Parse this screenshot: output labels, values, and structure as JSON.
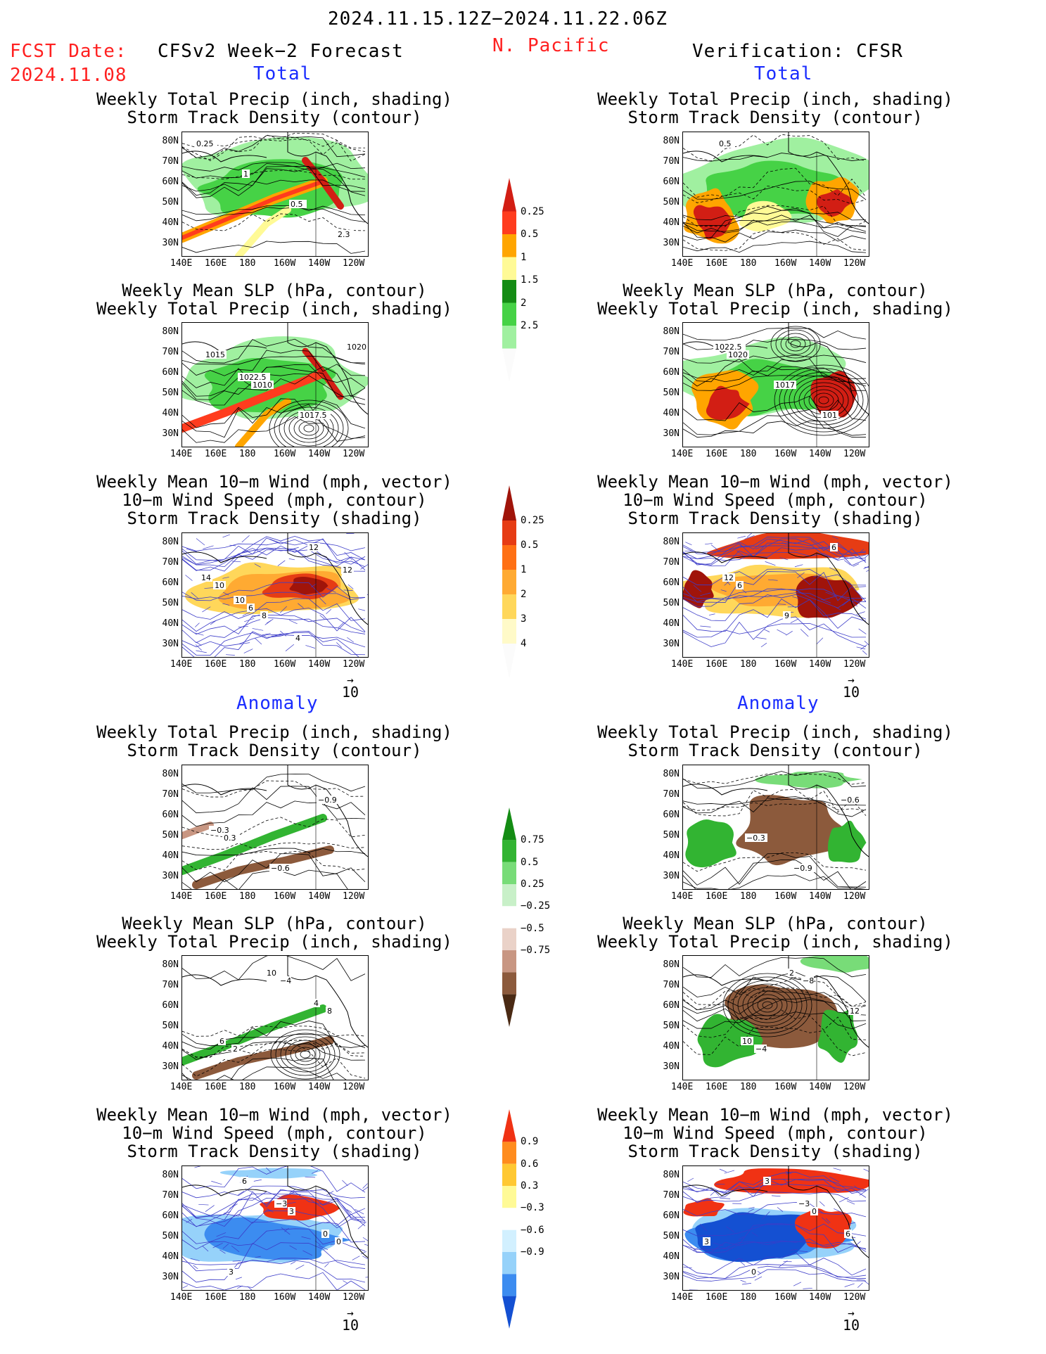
{
  "header": {
    "date_range": "2024.11.15.12Z−2024.11.22.06Z",
    "region": "N. Pacific",
    "fcst_label": "FCST Date:",
    "fcst_date": "2024.11.08",
    "left_title": "CFSv2 Week−2 Forecast",
    "right_title": "Verification: CFSR",
    "total_label": "Total",
    "anomaly_label": "Anomaly"
  },
  "panel_titles": {
    "precip_track": "Weekly Total Precip (inch, shading)\nStorm Track Density (contour)",
    "slp_precip": "Weekly Mean SLP (hPa, contour)\nWeekly Total Precip (inch, shading)",
    "wind_track": "Weekly Mean 10−m Wind (mph, vector)\n10−m Wind Speed (mph, contour)\nStorm Track Density (shading)"
  },
  "axes": {
    "lat_ticks": [
      "80N",
      "70N",
      "60N",
      "50N",
      "40N",
      "30N"
    ],
    "lon_ticks": [
      "140E",
      "160E",
      "180",
      "160W",
      "140W",
      "120W"
    ]
  },
  "vector_ref": "10",
  "colorbars": [
    {
      "name": "precip-total",
      "colors": [
        "#fbfbfb",
        "#a0f0a0",
        "#46d246",
        "#148c14",
        "#fffa96",
        "#ffa500",
        "#ff3c1e",
        "#d21e14"
      ],
      "labels": [
        "0.25",
        "0.5",
        "1",
        "1.5",
        "2",
        "2.5"
      ]
    },
    {
      "name": "track-total",
      "colors": [
        "#fbfbfb",
        "#fffac8",
        "#ffd75a",
        "#ffaa32",
        "#ff7014",
        "#e63c14",
        "#a0140a"
      ],
      "labels": [
        "0.25",
        "0.5",
        "1",
        "2",
        "3",
        "4"
      ]
    },
    {
      "name": "precip-anom",
      "colors": [
        "#4a2a14",
        "#8c5a3c",
        "#c89682",
        "#ead2c8",
        "#ffffff",
        "#c8f0c8",
        "#78dc78",
        "#32b432",
        "#148c14"
      ],
      "labels": [
        "0.75",
        "0.5",
        "0.25",
        "−0.25",
        "−0.5",
        "−0.75"
      ]
    },
    {
      "name": "track-anom",
      "colors": [
        "#1450d2",
        "#3c8cf0",
        "#96d2fa",
        "#d2f0ff",
        "#ffffff",
        "#fffa96",
        "#ffc832",
        "#ff8c1e",
        "#f03214"
      ],
      "labels": [
        "0.9",
        "0.6",
        "0.3",
        "−0.3",
        "−0.6",
        "−0.9"
      ]
    }
  ],
  "panels": [
    {
      "id": "fc-total-precip",
      "labels": [
        "0.25",
        "1",
        "0.5",
        "2.3"
      ]
    },
    {
      "id": "fc-total-slp",
      "labels": [
        "1015",
        "1010",
        "1017.5",
        "1020",
        "1022.5"
      ]
    },
    {
      "id": "fc-total-wind",
      "labels": [
        "10",
        "8",
        "12",
        "14",
        "6",
        "4",
        "12",
        "10"
      ]
    },
    {
      "id": "ver-total-precip",
      "labels": [
        "0.5"
      ]
    },
    {
      "id": "ver-total-slp",
      "labels": [
        "1020",
        "1017",
        "101",
        "1022.5"
      ]
    },
    {
      "id": "ver-total-wind",
      "labels": [
        "6",
        "9",
        "6",
        "12"
      ]
    },
    {
      "id": "fc-anom-precip",
      "labels": [
        "0.3",
        "−0.6",
        "−0.9",
        "−0.3"
      ]
    },
    {
      "id": "fc-anom-slp",
      "labels": [
        "2",
        "−4",
        "8",
        "6",
        "10",
        "4"
      ]
    },
    {
      "id": "fc-anom-wind",
      "labels": [
        "6",
        "3",
        "0",
        "3",
        "−3",
        "0"
      ]
    },
    {
      "id": "ver-anom-precip",
      "labels": [
        "−0.3",
        "−0.9",
        "−0.6"
      ]
    },
    {
      "id": "ver-anom-slp",
      "labels": [
        "−4",
        "−8",
        "12",
        "10",
        "2"
      ]
    },
    {
      "id": "ver-anom-wind",
      "labels": [
        "3",
        "0",
        "3",
        "0",
        "−3",
        "6"
      ]
    }
  ]
}
